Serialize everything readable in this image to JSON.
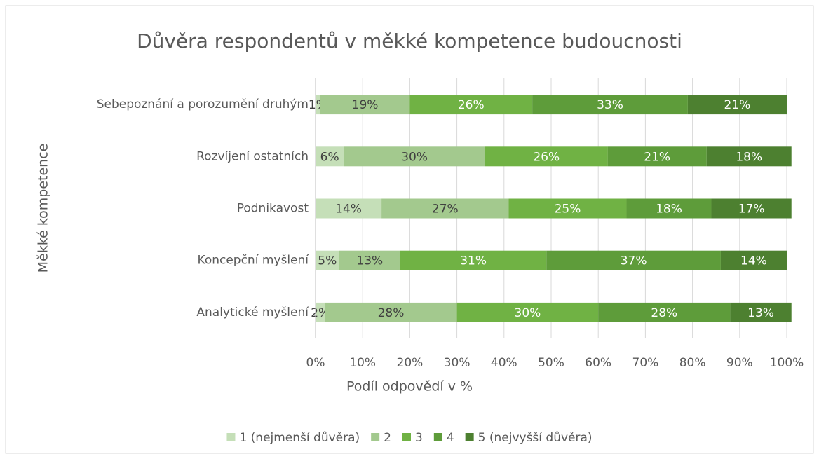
{
  "chart_data": {
    "type": "bar",
    "orientation": "horizontal",
    "stacked": true,
    "title": "Důvěra respondentů v měkké kompetence budoucnosti",
    "x_label": "Podíl odpovědí v %",
    "y_label": "Měkké kompetence",
    "categories": [
      "Sebepoznání a porozumění druhým",
      "Rozvíjení ostatních",
      "Podnikavost",
      "Koncepční myšlení",
      "Analytické myšlení"
    ],
    "series": [
      {
        "name": "1 (nejmenší důvěra)",
        "color": "#c5dfb8",
        "values": [
          1,
          6,
          14,
          5,
          2
        ],
        "value_labels": [
          "1%",
          "6%",
          "14%",
          "5%",
          "2%"
        ]
      },
      {
        "name": "2",
        "color": "#a3c98e",
        "values": [
          19,
          30,
          27,
          13,
          28
        ],
        "value_labels": [
          "19%",
          "30%",
          "27%",
          "13%",
          "28%"
        ]
      },
      {
        "name": "3",
        "color": "#70b244",
        "values": [
          26,
          26,
          25,
          31,
          30
        ],
        "value_labels": [
          "26%",
          "26%",
          "25%",
          "31%",
          "30%"
        ]
      },
      {
        "name": "4",
        "color": "#5e9c3a",
        "values": [
          33,
          21,
          18,
          37,
          28
        ],
        "value_labels": [
          "33%",
          "21%",
          "18%",
          "37%",
          "28%"
        ]
      },
      {
        "name": "5 (nejvyšší důvěra)",
        "color": "#4d8030",
        "values": [
          21,
          18,
          17,
          14,
          13
        ],
        "value_labels": [
          "21%",
          "18%",
          "17%",
          "14%",
          "13%"
        ]
      }
    ],
    "xlim": [
      0,
      100
    ],
    "xticks": [
      {
        "value": 0,
        "label": "0%"
      },
      {
        "value": 10,
        "label": "10%"
      },
      {
        "value": 20,
        "label": "20%"
      },
      {
        "value": 30,
        "label": "30%"
      },
      {
        "value": 40,
        "label": "40%"
      },
      {
        "value": 50,
        "label": "50%"
      },
      {
        "value": 60,
        "label": "60%"
      },
      {
        "value": 70,
        "label": "70%"
      },
      {
        "value": 80,
        "label": "80%"
      },
      {
        "value": 90,
        "label": "90%"
      },
      {
        "value": 100,
        "label": "100%"
      }
    ],
    "grid": true,
    "legend": "bottom"
  }
}
